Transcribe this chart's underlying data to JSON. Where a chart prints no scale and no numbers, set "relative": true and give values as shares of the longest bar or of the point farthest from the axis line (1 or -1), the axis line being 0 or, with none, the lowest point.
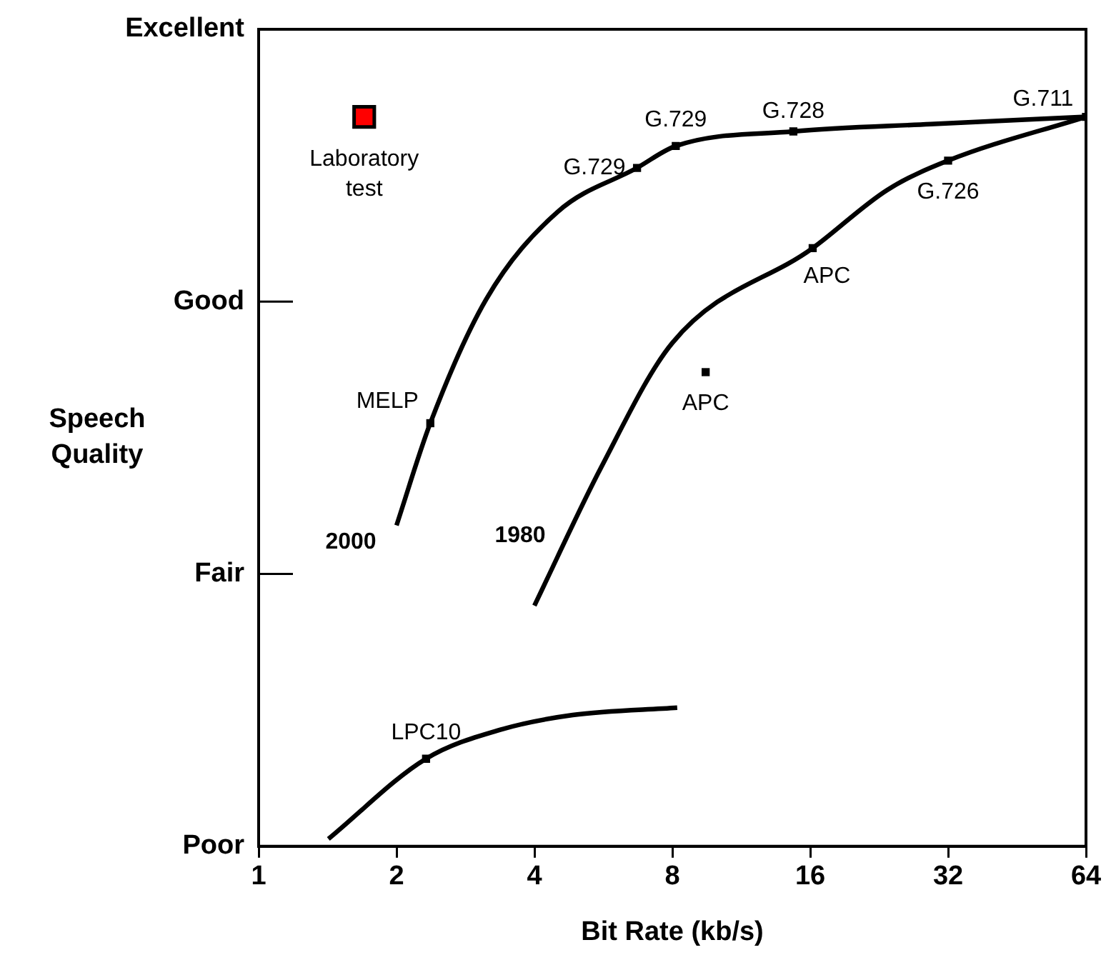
{
  "chart_data": {
    "type": "line",
    "xlabel": "Bit Rate (kb/s)",
    "ylabel": "Speech Quality",
    "log": "x",
    "xlim": [
      1,
      64
    ],
    "xticks": [
      1,
      2,
      4,
      8,
      16,
      32,
      64
    ],
    "relative": true,
    "y_categories": [
      "Excellent",
      "Good",
      "Fair",
      "Poor"
    ],
    "grid": false,
    "legend": false,
    "series": [
      {
        "type": "line",
        "color": "#000000",
        "marker": "none",
        "x": [
          2,
          2.37,
          3.14,
          4.5,
          6.7,
          8.14,
          14.7,
          29.3,
          64
        ],
        "values": [
          0.44,
          0.58,
          0.75,
          0.87,
          0.93,
          0.96,
          0.98,
          0.99,
          1.0
        ]
      },
      {
        "type": "line",
        "color": "#000000",
        "marker": "none",
        "x": [
          4,
          5.6,
          8,
          16.2,
          23.6,
          32,
          64
        ],
        "values": [
          0.33,
          0.52,
          0.69,
          0.82,
          0.9,
          0.94,
          1.0
        ]
      },
      {
        "type": "line",
        "color": "#000000",
        "marker": "none",
        "x": [
          1.42,
          2.32,
          3.38,
          4.85,
          8.2
        ],
        "values": [
          0.01,
          0.12,
          0.16,
          0.18,
          0.19
        ]
      },
      {
        "type": "scatter",
        "color": "#000000",
        "marker": "square",
        "x": [
          64,
          14.7,
          8.14,
          6.7,
          32,
          16.2,
          9.46,
          2.37,
          2.32
        ],
        "values": [
          1.0,
          0.98,
          0.96,
          0.93,
          0.94,
          0.82,
          0.65,
          0.58,
          0.12
        ]
      },
      {
        "type": "scatter",
        "name": "Laboratory test",
        "color": "#ff0000",
        "marker": "square",
        "x": [
          1.7
        ],
        "values": [
          1.0
        ]
      }
    ],
    "annotations": [
      {
        "text": "G.711",
        "x": 64,
        "y": 1.0
      },
      {
        "text": "G.728",
        "x": 14.7,
        "y": 0.98
      },
      {
        "text": "G.729",
        "x": 8.14,
        "y": 0.96
      },
      {
        "text": "G.729",
        "x": 6.7,
        "y": 0.93
      },
      {
        "text": "G.726",
        "x": 32,
        "y": 0.94
      },
      {
        "text": "APC",
        "x": 16.2,
        "y": 0.82
      },
      {
        "text": "APC",
        "x": 9.46,
        "y": 0.65
      },
      {
        "text": "MELP",
        "x": 2.37,
        "y": 0.58
      },
      {
        "text": "LPC10",
        "x": 2.32,
        "y": 0.12
      },
      {
        "text": "2000",
        "x": 2,
        "y": 0.44
      },
      {
        "text": "1980",
        "x": 4,
        "y": 0.33
      }
    ]
  }
}
